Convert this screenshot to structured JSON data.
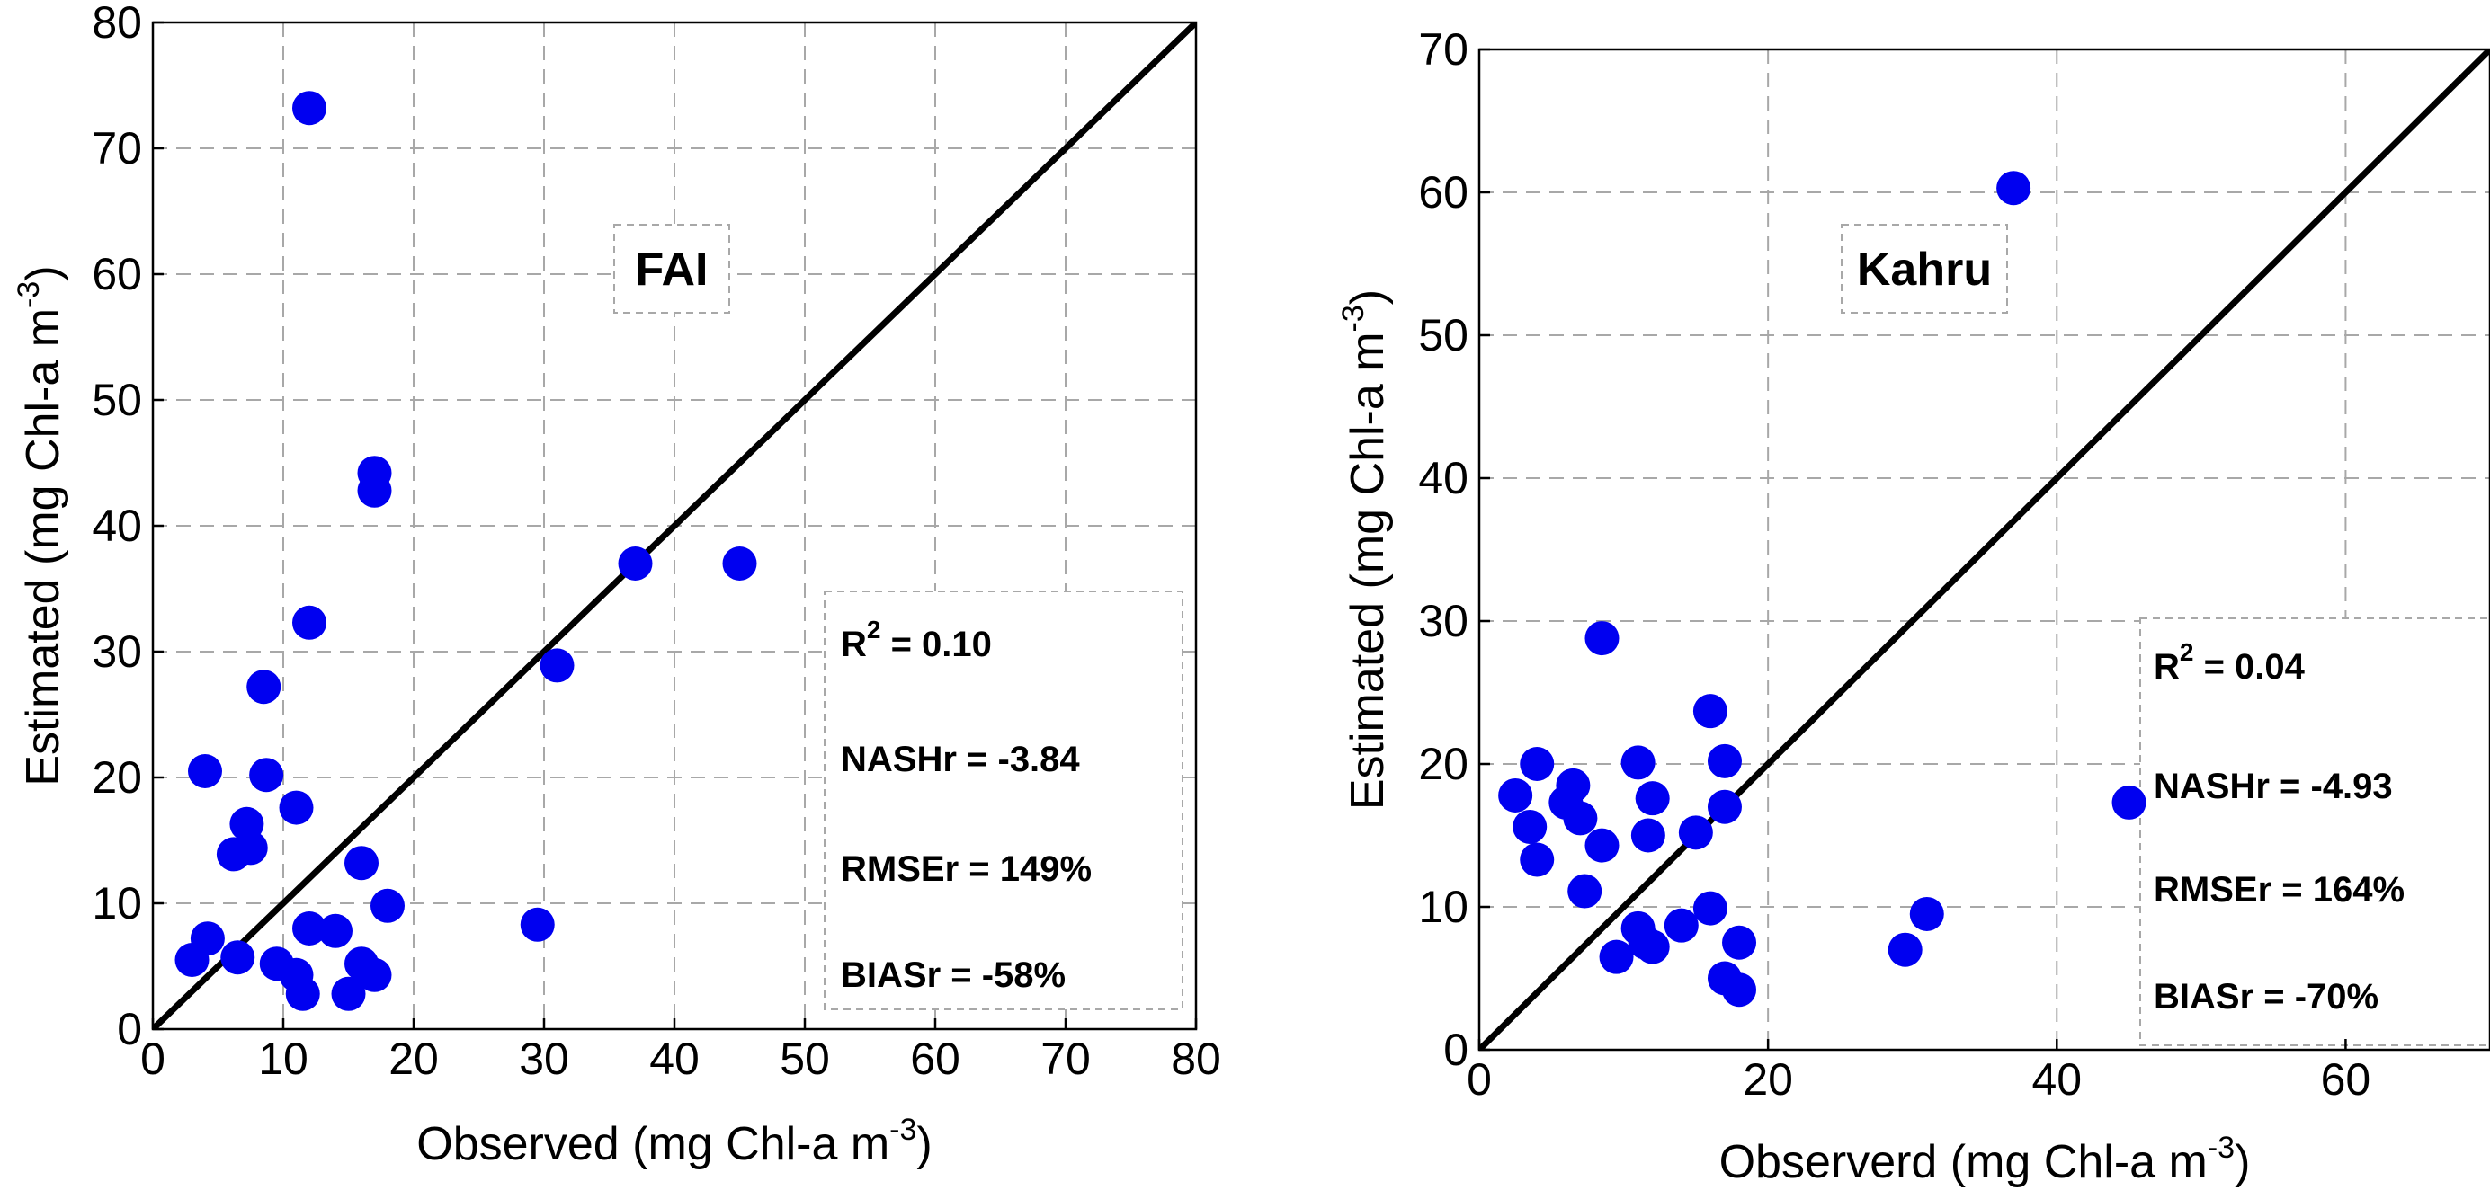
{
  "chart_data": [
    {
      "type": "scatter",
      "title": "FAI",
      "xlabel": "Observed (mg Chl-a m",
      "xlabel_sup": "-3",
      "xlabel_end": ")",
      "ylabel": "Estimated (mg Chl-a m",
      "ylabel_sup": "-3",
      "ylabel_end": ")",
      "xlim": [
        0,
        80
      ],
      "ylim": [
        0,
        80
      ],
      "xticks": [
        0,
        10,
        20,
        30,
        40,
        50,
        60,
        70,
        80
      ],
      "yticks": [
        0,
        10,
        20,
        30,
        40,
        50,
        60,
        70,
        80
      ],
      "grid": true,
      "reference_line": "1:1",
      "point_color": "#0000f0",
      "stats": {
        "r2_label": "R",
        "r2_sup": "2",
        "r2_value": " = 0.10",
        "nash": "NASHr = -3.84",
        "rmse": "RMSEr = 149%",
        "bias": "BIASr = -58%"
      },
      "points": [
        [
          12,
          73.2
        ],
        [
          17,
          44.2
        ],
        [
          17,
          42.8
        ],
        [
          37,
          37
        ],
        [
          45,
          37
        ],
        [
          12,
          32.3
        ],
        [
          31,
          28.9
        ],
        [
          8.5,
          27.2
        ],
        [
          4,
          20.5
        ],
        [
          8.7,
          20.2
        ],
        [
          11,
          17.6
        ],
        [
          7.2,
          16.3
        ],
        [
          7.5,
          14.4
        ],
        [
          6.2,
          13.9
        ],
        [
          16,
          13.2
        ],
        [
          18,
          9.8
        ],
        [
          29.5,
          8.3
        ],
        [
          12,
          8
        ],
        [
          14,
          7.8
        ],
        [
          4.2,
          7.2
        ],
        [
          3,
          5.5
        ],
        [
          6.5,
          5.7
        ],
        [
          9.5,
          5.2
        ],
        [
          16,
          5.2
        ],
        [
          17,
          4.3
        ],
        [
          11,
          4.3
        ],
        [
          11.5,
          2.8
        ],
        [
          15,
          2.8
        ]
      ]
    },
    {
      "type": "scatter",
      "title": "Kahru",
      "xlabel": "Observerd  (mg Chl-a m",
      "xlabel_sup": "-3",
      "xlabel_end": ")",
      "ylabel": "Estimated  (mg Chl-a m",
      "ylabel_sup": "-3",
      "ylabel_end": ")",
      "xlim": [
        0,
        70
      ],
      "ylim": [
        0,
        70
      ],
      "xticks": [
        0,
        20,
        40,
        60
      ],
      "yticks": [
        0,
        10,
        20,
        30,
        40,
        50,
        60,
        70
      ],
      "grid": true,
      "reference_line": "1:1",
      "point_color": "#0000f0",
      "stats": {
        "r2_label": "R",
        "r2_sup": "2",
        "r2_value": " = 0.04",
        "nash": "NASHr = -4.93",
        "rmse": "RMSEr = 164%",
        "bias": "BIASr = -70%"
      },
      "points": [
        [
          37,
          60.3
        ],
        [
          8.5,
          28.8
        ],
        [
          16,
          23.7
        ],
        [
          4,
          20
        ],
        [
          11,
          20.1
        ],
        [
          17,
          20.2
        ],
        [
          6.5,
          18.5
        ],
        [
          2.5,
          17.8
        ],
        [
          6,
          17.3
        ],
        [
          12,
          17.6
        ],
        [
          17,
          17
        ],
        [
          45,
          17.3
        ],
        [
          7,
          16.2
        ],
        [
          3.5,
          15.6
        ],
        [
          11.7,
          15
        ],
        [
          15,
          15.2
        ],
        [
          8.5,
          14.3
        ],
        [
          4,
          13.3
        ],
        [
          7.3,
          11.1
        ],
        [
          16,
          9.9
        ],
        [
          31,
          9.5
        ],
        [
          11,
          8.5
        ],
        [
          14,
          8.7
        ],
        [
          11.5,
          7.5
        ],
        [
          12,
          7.2
        ],
        [
          18,
          7.5
        ],
        [
          29.5,
          7
        ],
        [
          9.5,
          6.5
        ],
        [
          17,
          5
        ],
        [
          18,
          4.2
        ]
      ]
    }
  ]
}
